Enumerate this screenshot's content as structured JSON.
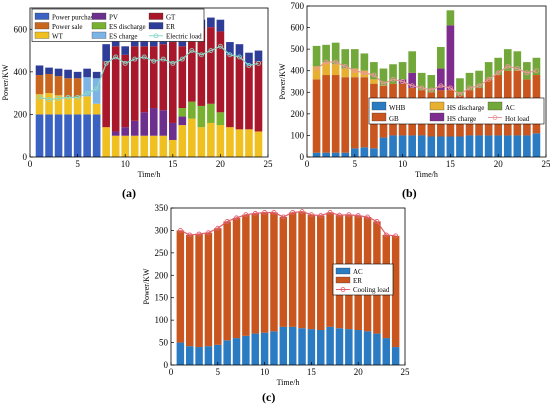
{
  "colors": {
    "power_purchase": "#3a62c2",
    "power_sale": "#c8661e",
    "wt": "#f0c020",
    "pv": "#6d2f8e",
    "es_discharge": "#78b030",
    "es_charge": "#7db4e6",
    "gt": "#a8182a",
    "er": "#2e3d97",
    "electric_load": "#88d8c8",
    "whb": "#2a7bc2",
    "gb": "#c8561e",
    "hs_discharge": "#e8b030",
    "hs_charge": "#7e2d8e",
    "ac": "#72a83a",
    "hot_load": "#e89898",
    "ac_c": "#2a7bc2",
    "er_c": "#c8561e",
    "cooling_load": "#e06070"
  },
  "chart_data": [
    {
      "id": "a",
      "type": "bar",
      "stacked": true,
      "caption": "(a)",
      "xlabel": "Time/h",
      "ylabel": "Power/KW",
      "xlim": [
        0,
        25
      ],
      "ylim": [
        0,
        700
      ],
      "xticks": [
        "0",
        "5",
        "10",
        "15",
        "20",
        "25"
      ],
      "yticks": [
        "0",
        "200",
        "400",
        "600"
      ],
      "x": [
        1,
        2,
        3,
        4,
        5,
        6,
        7,
        8,
        9,
        10,
        11,
        12,
        13,
        14,
        15,
        16,
        17,
        18,
        19,
        20,
        21,
        22,
        23,
        24
      ],
      "legend": [
        {
          "name": "Power purchase",
          "key": "power_purchase",
          "kind": "bar"
        },
        {
          "name": "PV",
          "key": "pv",
          "kind": "bar"
        },
        {
          "name": "GT",
          "key": "gt",
          "kind": "bar"
        },
        {
          "name": "Power sale",
          "key": "power_sale",
          "kind": "bar"
        },
        {
          "name": "ES discharge",
          "key": "es_discharge",
          "kind": "bar"
        },
        {
          "name": "ER",
          "key": "er",
          "kind": "bar"
        },
        {
          "name": "WT",
          "key": "wt",
          "kind": "bar"
        },
        {
          "name": "ES charge",
          "key": "es_charge",
          "kind": "bar"
        },
        {
          "name": "Electric load",
          "key": "electric_load",
          "kind": "line"
        }
      ],
      "series": [
        {
          "key": "power_purchase",
          "values": [
            200,
            200,
            200,
            200,
            200,
            200,
            200,
            0,
            0,
            0,
            0,
            0,
            0,
            0,
            0,
            0,
            0,
            0,
            0,
            0,
            0,
            0,
            0,
            0
          ]
        },
        {
          "key": "wt",
          "values": [
            95,
            100,
            90,
            80,
            80,
            85,
            50,
            140,
            100,
            100,
            100,
            100,
            100,
            100,
            80,
            150,
            180,
            140,
            160,
            150,
            140,
            130,
            130,
            120
          ]
        },
        {
          "key": "pv",
          "values": [
            0,
            0,
            0,
            0,
            0,
            0,
            0,
            0,
            20,
            40,
            70,
            110,
            130,
            120,
            80,
            40,
            0,
            0,
            0,
            0,
            0,
            0,
            0,
            0
          ]
        },
        {
          "key": "es_discharge",
          "values": [
            0,
            0,
            0,
            0,
            0,
            0,
            0,
            0,
            0,
            0,
            0,
            0,
            0,
            0,
            0,
            40,
            80,
            100,
            90,
            60,
            0,
            0,
            0,
            0
          ]
        },
        {
          "key": "es_charge",
          "values": [
            0,
            0,
            0,
            0,
            0,
            90,
            120,
            0,
            0,
            0,
            0,
            0,
            0,
            0,
            0,
            0,
            0,
            0,
            0,
            0,
            0,
            0,
            0,
            0
          ]
        },
        {
          "key": "gt",
          "values": [
            0,
            0,
            0,
            0,
            0,
            0,
            0,
            310,
            400,
            340,
            350,
            310,
            290,
            310,
            380,
            290,
            340,
            360,
            360,
            380,
            340,
            340,
            300,
            330
          ]
        },
        {
          "key": "power_sale",
          "values": [
            90,
            90,
            90,
            90,
            90,
            0,
            0,
            0,
            0,
            0,
            0,
            0,
            0,
            0,
            0,
            0,
            0,
            0,
            0,
            0,
            0,
            0,
            0,
            0
          ]
        },
        {
          "key": "er",
          "values": [
            45,
            30,
            35,
            40,
            30,
            40,
            30,
            80,
            40,
            40,
            50,
            40,
            50,
            50,
            40,
            60,
            45,
            45,
            45,
            55,
            60,
            60,
            60,
            50
          ]
        }
      ],
      "line": {
        "key": "electric_load",
        "values": [
          280,
          270,
          275,
          280,
          280,
          300,
          320,
          440,
          470,
          440,
          460,
          470,
          450,
          460,
          440,
          460,
          500,
          480,
          500,
          520,
          480,
          470,
          430,
          440
        ]
      }
    },
    {
      "id": "b",
      "type": "bar",
      "stacked": true,
      "caption": "(b)",
      "xlabel": "Time/h",
      "ylabel": "Power/KW",
      "xlim": [
        0,
        25
      ],
      "ylim": [
        0,
        700
      ],
      "xticks": [
        "0",
        "5",
        "10",
        "15",
        "20",
        "25"
      ],
      "yticks": [
        "0",
        "100",
        "200",
        "300",
        "400",
        "500",
        "600",
        "700"
      ],
      "x": [
        1,
        2,
        3,
        4,
        5,
        6,
        7,
        8,
        9,
        10,
        11,
        12,
        13,
        14,
        15,
        16,
        17,
        18,
        19,
        20,
        21,
        22,
        23,
        24
      ],
      "legend": [
        {
          "name": "WHB",
          "key": "whb",
          "kind": "bar"
        },
        {
          "name": "HS discharge",
          "key": "hs_discharge",
          "kind": "bar"
        },
        {
          "name": "AC",
          "key": "ac",
          "kind": "bar"
        },
        {
          "name": "GB",
          "key": "gb",
          "kind": "bar"
        },
        {
          "name": "HS charge",
          "key": "hs_charge",
          "kind": "bar"
        },
        {
          "name": "Hot load",
          "key": "hot_load",
          "kind": "line"
        }
      ],
      "series": [
        {
          "key": "whb",
          "values": [
            20,
            20,
            20,
            20,
            40,
            45,
            40,
            90,
            100,
            100,
            100,
            100,
            95,
            95,
            95,
            95,
            100,
            100,
            100,
            100,
            100,
            100,
            100,
            110
          ]
        },
        {
          "key": "gb",
          "values": [
            340,
            360,
            360,
            350,
            330,
            325,
            300,
            240,
            240,
            240,
            220,
            210,
            205,
            215,
            215,
            190,
            210,
            220,
            260,
            280,
            300,
            300,
            260,
            270
          ]
        },
        {
          "key": "hs_discharge",
          "values": [
            60,
            60,
            50,
            40,
            40,
            30,
            20,
            0,
            0,
            0,
            0,
            0,
            0,
            0,
            0,
            0,
            0,
            0,
            0,
            0,
            0,
            0,
            0,
            0
          ]
        },
        {
          "key": "hs_charge",
          "values": [
            0,
            0,
            0,
            0,
            0,
            0,
            0,
            0,
            0,
            20,
            70,
            0,
            0,
            100,
            300,
            0,
            0,
            0,
            0,
            0,
            0,
            0,
            0,
            0
          ]
        },
        {
          "key": "ac",
          "values": [
            95,
            80,
            100,
            90,
            90,
            80,
            80,
            80,
            90,
            80,
            100,
            80,
            80,
            100,
            70,
            80,
            80,
            80,
            80,
            80,
            100,
            90,
            80,
            80
          ]
        }
      ],
      "line": {
        "key": "hot_load",
        "values": [
          410,
          440,
          440,
          420,
          400,
          390,
          380,
          340,
          360,
          350,
          330,
          320,
          310,
          330,
          320,
          290,
          320,
          330,
          360,
          390,
          420,
          410,
          390,
          400
        ]
      }
    },
    {
      "id": "c",
      "type": "bar",
      "stacked": true,
      "caption": "(c)",
      "xlabel": "Time/h",
      "ylabel": "Power/KW",
      "xlim": [
        0,
        25
      ],
      "ylim": [
        0,
        350
      ],
      "xticks": [
        "0",
        "5",
        "10",
        "15",
        "20",
        "25"
      ],
      "yticks": [
        "0",
        "50",
        "100",
        "150",
        "200",
        "250",
        "300",
        "350"
      ],
      "x": [
        1,
        2,
        3,
        4,
        5,
        6,
        7,
        8,
        9,
        10,
        11,
        12,
        13,
        14,
        15,
        16,
        17,
        18,
        19,
        20,
        21,
        22,
        23,
        24
      ],
      "legend": [
        {
          "name": "AC",
          "key": "ac_c",
          "kind": "bar"
        },
        {
          "name": "ER",
          "key": "er_c",
          "kind": "bar"
        },
        {
          "name": "Cooling load",
          "key": "cooling_load",
          "kind": "line"
        }
      ],
      "series": [
        {
          "key": "ac_c",
          "values": [
            50,
            42,
            40,
            42,
            45,
            55,
            60,
            65,
            70,
            72,
            75,
            85,
            85,
            82,
            80,
            78,
            85,
            82,
            80,
            78,
            75,
            70,
            60,
            40
          ]
        },
        {
          "key": "er_c",
          "values": [
            250,
            248,
            252,
            253,
            260,
            265,
            268,
            270,
            268,
            268,
            265,
            245,
            255,
            260,
            255,
            255,
            255,
            252,
            255,
            255,
            255,
            250,
            230,
            248
          ]
        }
      ],
      "line": {
        "key": "cooling_load",
        "values": [
          300,
          290,
          292,
          295,
          305,
          320,
          328,
          335,
          338,
          340,
          340,
          330,
          340,
          342,
          335,
          333,
          340,
          334,
          335,
          333,
          330,
          320,
          290,
          288
        ]
      }
    }
  ]
}
